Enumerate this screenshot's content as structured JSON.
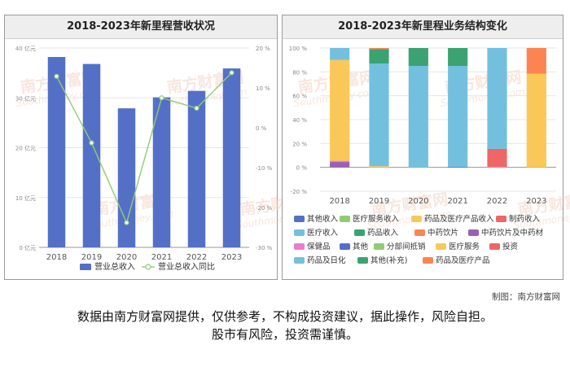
{
  "credit": "制图：南方财富网",
  "disclaimer": {
    "line1": "数据由南方财富网提供，仅供参考，不构成投资建议，据此操作，风险自担。",
    "line2": "股市有风险，投资需谨慎。"
  },
  "watermark": {
    "cn": "南方财富网",
    "en": "Southmoney.com",
    "color": "#f3d2c3"
  },
  "chart_data": [
    {
      "type": "bar",
      "title": "2018-2023年新里程营收状况",
      "categories": [
        "2018",
        "2019",
        "2020",
        "2021",
        "2022",
        "2023"
      ],
      "series": [
        {
          "name": "营业总收入",
          "type": "bar",
          "color": "#5470c6",
          "values": [
            38.2,
            36.8,
            27.9,
            30.1,
            31.4,
            35.9
          ]
        },
        {
          "name": "营业总收入同比",
          "type": "line",
          "color": "#91cc75",
          "values": [
            12.9,
            -3.8,
            -23.8,
            7.5,
            4.9,
            13.8
          ]
        }
      ],
      "y_left": {
        "ticks": [
          "0 亿元",
          "10 亿元",
          "20 亿元",
          "30 亿元",
          "40 亿元"
        ],
        "min": 0,
        "max": 40
      },
      "y_right": {
        "ticks": [
          "-30 %",
          "-20 %",
          "-10 %",
          "0 %",
          "10 %",
          "20 %"
        ],
        "min": -30,
        "max": 20
      },
      "grid": true,
      "legend_position": "bottom"
    },
    {
      "type": "bar",
      "stacked": true,
      "title": "2018-2023年新里程业务结构变化",
      "categories": [
        "2018",
        "2019",
        "2020",
        "2021",
        "2022",
        "2023"
      ],
      "y_ticks": [
        "-20 %",
        "0 %",
        "20 %",
        "40 %",
        "60 %",
        "80 %",
        "100 %"
      ],
      "ylim": [
        -20,
        100
      ],
      "grid": true,
      "legend_position": "bottom",
      "series": [
        {
          "name": "其他收入",
          "color": "#5470c6",
          "values": [
            0,
            0,
            0,
            0,
            0,
            0
          ]
        },
        {
          "name": "医疗服务收入",
          "color": "#91cc75",
          "values": [
            0,
            0,
            0,
            0,
            0,
            0
          ]
        },
        {
          "name": "药品及医疗产品收入",
          "color": "#fac858",
          "values": [
            0,
            0,
            0,
            0,
            0,
            0
          ]
        },
        {
          "name": "制药收入",
          "color": "#ee6666",
          "values": [
            0,
            0,
            0,
            0,
            0,
            0
          ]
        },
        {
          "name": "医疗收入",
          "color": "#73c0de",
          "values": [
            0,
            0,
            0,
            0,
            0,
            0
          ]
        },
        {
          "name": "药品收入",
          "color": "#3ba272",
          "values": [
            0,
            0,
            0,
            0,
            0,
            0
          ]
        },
        {
          "name": "中药饮片",
          "color": "#fc8452",
          "values": [
            0,
            0,
            0,
            0,
            0,
            0
          ]
        },
        {
          "name": "中药饮片及中药材",
          "color": "#9a60b4",
          "values": [
            4.5,
            0,
            0,
            0,
            0,
            0
          ]
        },
        {
          "name": "保健品",
          "color": "#ea7ccc",
          "values": [
            1.0,
            0,
            0,
            0,
            0.5,
            0
          ]
        },
        {
          "name": "其他",
          "color": "#5470c6",
          "values": [
            0,
            0,
            0,
            0.5,
            0,
            0
          ]
        },
        {
          "name": "分部间抵销",
          "color": "#91cc75",
          "values": [
            0,
            0,
            0,
            0,
            0,
            0
          ]
        },
        {
          "name": "医疗服务",
          "color": "#fac858",
          "values": [
            84.5,
            1.0,
            0,
            0,
            0,
            78.5
          ]
        },
        {
          "name": "投资",
          "color": "#ee6666",
          "values": [
            0,
            0,
            0,
            0,
            15.0,
            0
          ]
        },
        {
          "name": "药品及日化",
          "color": "#73c0de",
          "values": [
            0,
            86.0,
            85.0,
            84.5,
            84.5,
            0
          ]
        },
        {
          "name": "其他(补充)",
          "color": "#3ba272",
          "values": [
            0,
            12.0,
            15.0,
            15.0,
            0,
            0
          ]
        },
        {
          "name": "药品及医疗产品",
          "color": "#fc8452",
          "values": [
            0,
            1.0,
            0,
            0,
            0,
            21.5
          ]
        },
        {
          "name": "药品及日化",
          "color": "#73c0de",
          "values": [
            10.0,
            0,
            0,
            0,
            0,
            0
          ]
        }
      ]
    }
  ]
}
